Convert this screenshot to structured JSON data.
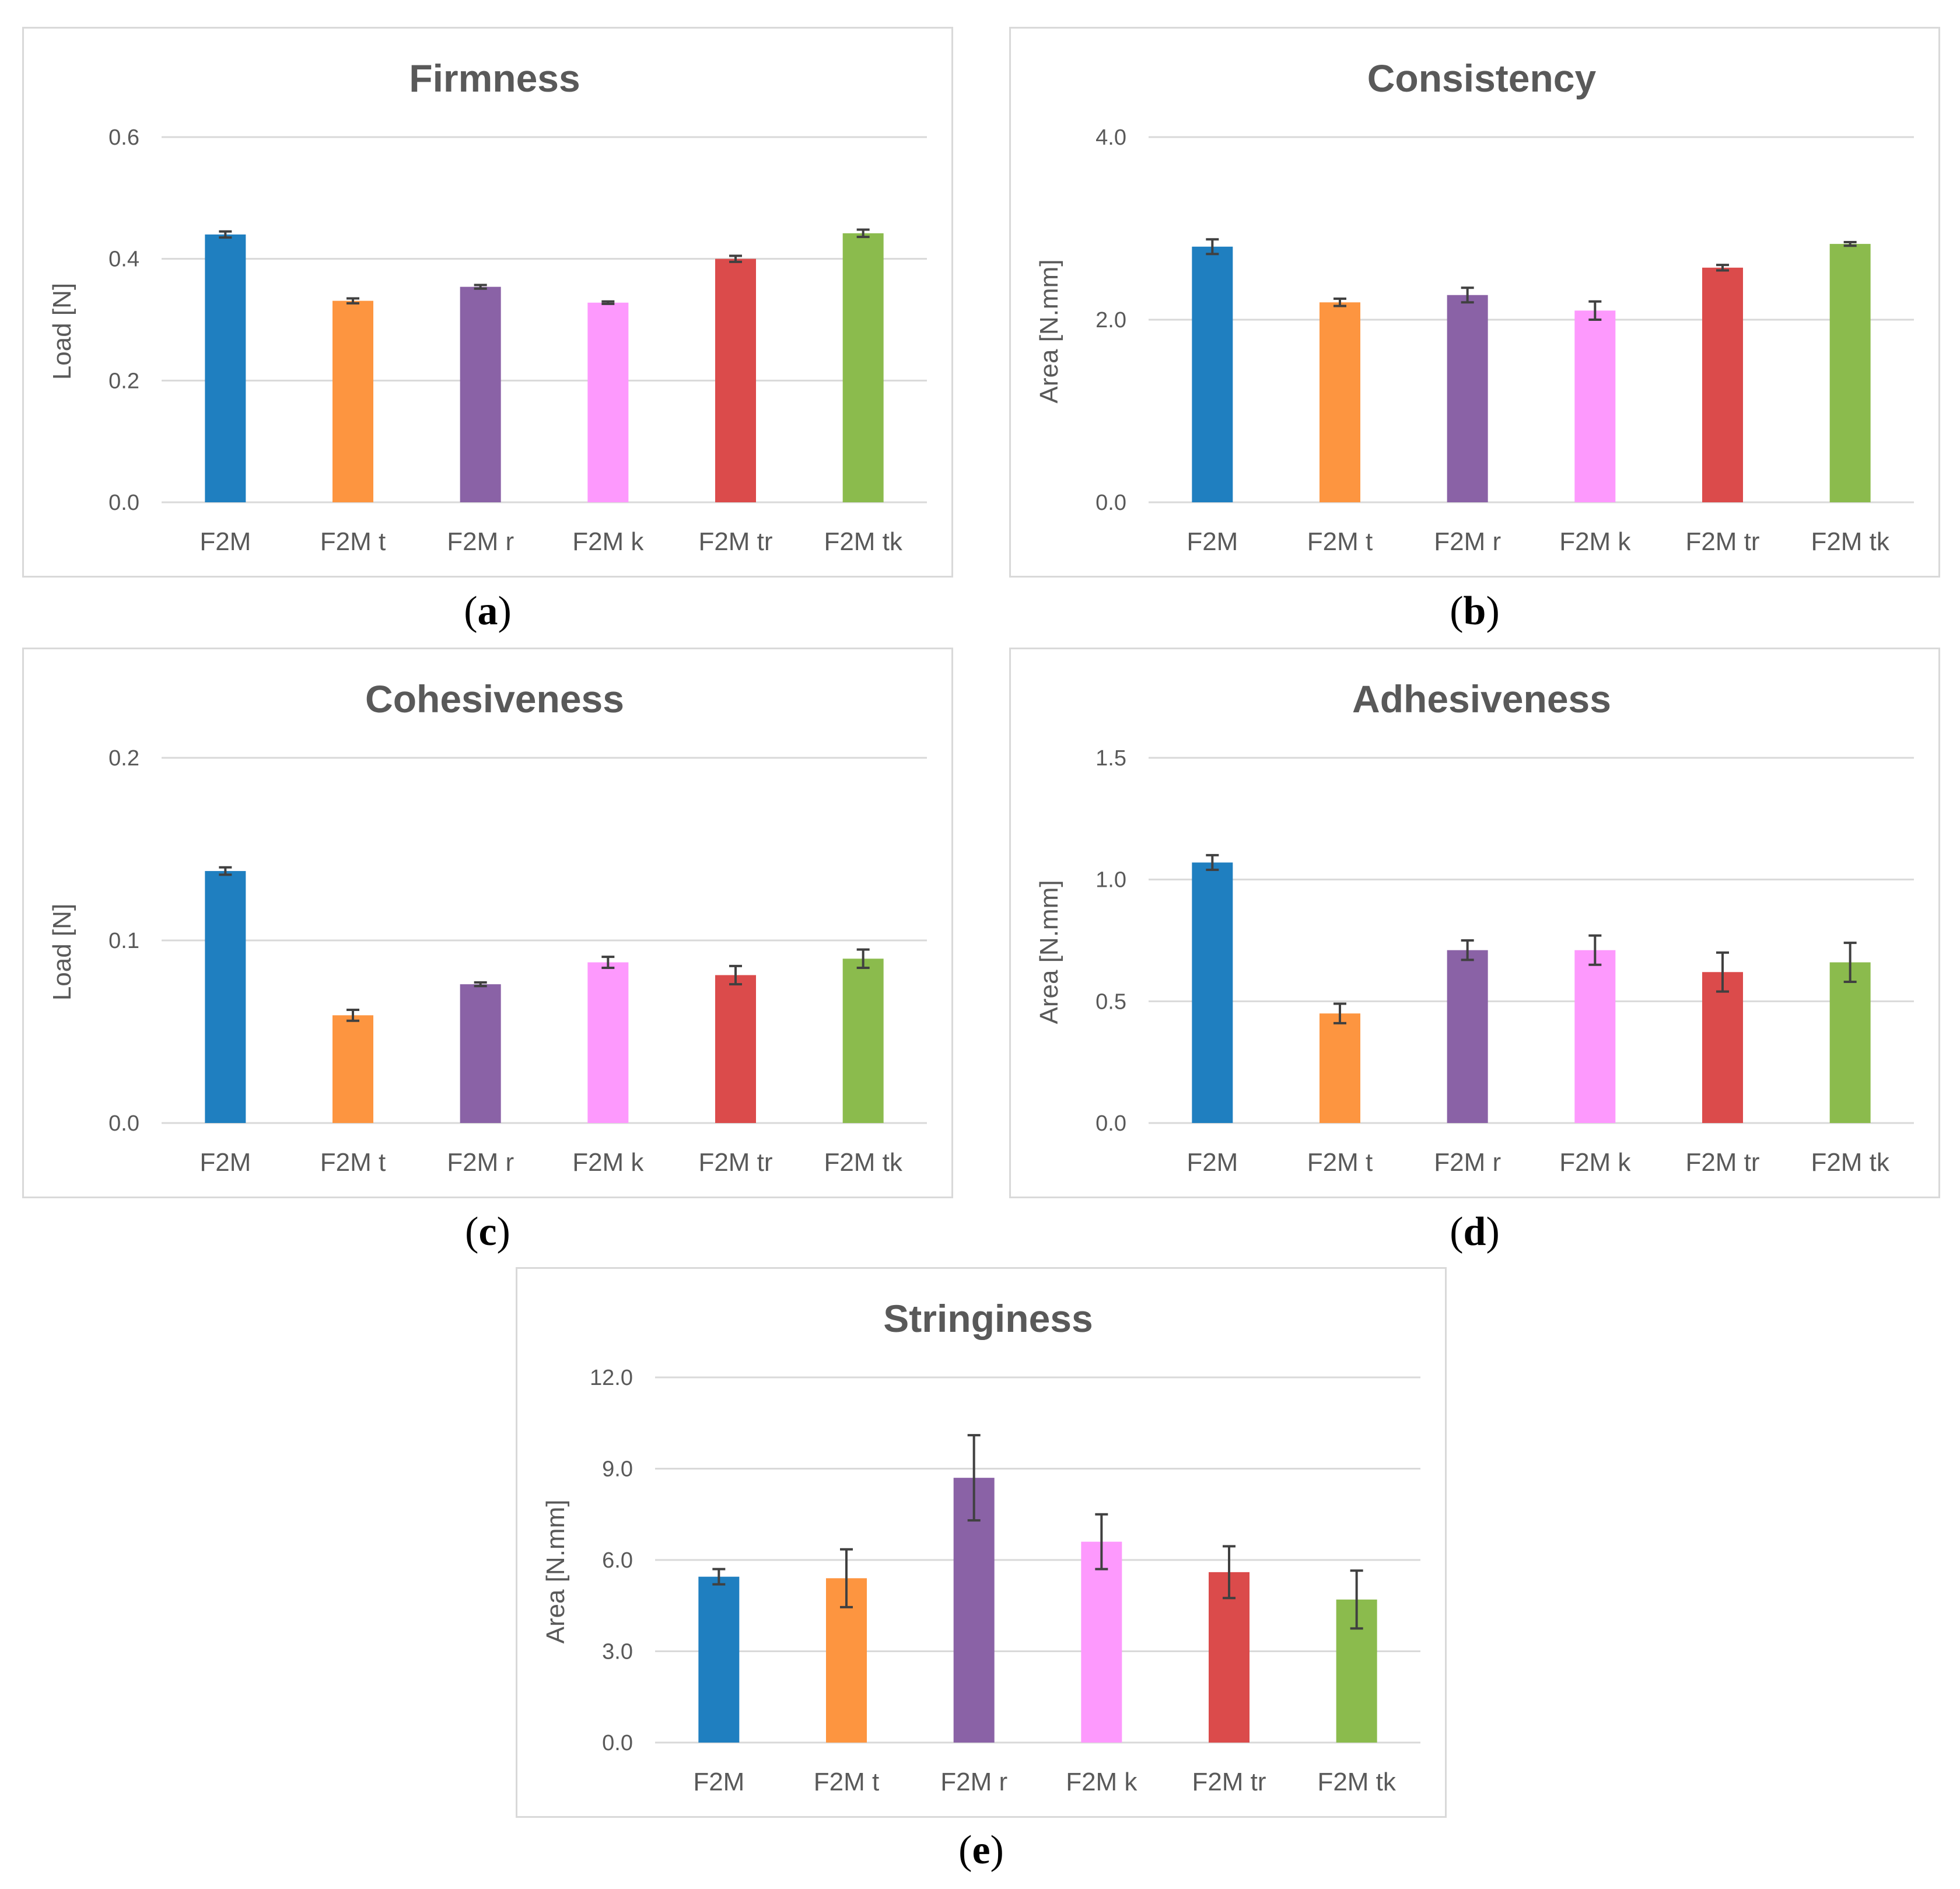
{
  "colors": [
    "#1f7fc0",
    "#fd9540",
    "#8a62a6",
    "#fd99fd",
    "#db4b4b",
    "#8bbb4d"
  ],
  "chart_data": [
    {
      "type": "bar",
      "title": "Firmness",
      "caption": "a",
      "ylabel": "Load [N]",
      "categories": [
        "F2M",
        "F2M t",
        "F2M r",
        "F2M k",
        "F2M tr",
        "F2M tk"
      ],
      "values": [
        0.44,
        0.331,
        0.354,
        0.328,
        0.4,
        0.442
      ],
      "errors": [
        0.005,
        0.004,
        0.003,
        0.002,
        0.005,
        0.006
      ],
      "ylim": [
        0,
        0.6
      ],
      "yticks": [
        "0.0",
        "0.2",
        "0.4",
        "0.6"
      ],
      "grid": true
    },
    {
      "type": "bar",
      "title": "Consistency",
      "caption": "b",
      "ylabel": "Area [N.mm]",
      "categories": [
        "F2M",
        "F2M t",
        "F2M r",
        "F2M k",
        "F2M tr",
        "F2M tk"
      ],
      "values": [
        2.8,
        2.19,
        2.27,
        2.1,
        2.57,
        2.83
      ],
      "errors": [
        0.08,
        0.04,
        0.08,
        0.1,
        0.03,
        0.02
      ],
      "ylim": [
        0,
        4.0
      ],
      "yticks": [
        "0.0",
        "2.0",
        "4.0"
      ],
      "grid": true
    },
    {
      "type": "bar",
      "title": "Cohesiveness",
      "caption": "c",
      "ylabel": "Load [N]",
      "categories": [
        "F2M",
        "F2M t",
        "F2M r",
        "F2M k",
        "F2M tr",
        "F2M tk"
      ],
      "values": [
        0.138,
        0.059,
        0.076,
        0.088,
        0.081,
        0.09
      ],
      "errors": [
        0.002,
        0.003,
        0.001,
        0.003,
        0.005,
        0.005
      ],
      "ylim": [
        0,
        0.2
      ],
      "yticks": [
        "0.0",
        "0.1",
        "0.2"
      ],
      "grid": true
    },
    {
      "type": "bar",
      "title": "Adhesiveness",
      "caption": "d",
      "ylabel": "Area [N.mm]",
      "categories": [
        "F2M",
        "F2M t",
        "F2M r",
        "F2M k",
        "F2M tr",
        "F2M tk"
      ],
      "values": [
        1.07,
        0.45,
        0.71,
        0.71,
        0.62,
        0.66
      ],
      "errors": [
        0.03,
        0.04,
        0.04,
        0.06,
        0.08,
        0.08
      ],
      "ylim": [
        0,
        1.5
      ],
      "yticks": [
        "0.0",
        "0.5",
        "1.0",
        "1.5"
      ],
      "grid": true
    },
    {
      "type": "bar",
      "title": "Stringiness",
      "caption": "e",
      "ylabel": "Area [N.mm]",
      "categories": [
        "F2M",
        "F2M t",
        "F2M r",
        "F2M k",
        "F2M tr",
        "F2M tk"
      ],
      "values": [
        5.45,
        5.4,
        8.7,
        6.6,
        5.6,
        4.7
      ],
      "errors": [
        0.25,
        0.95,
        1.4,
        0.9,
        0.85,
        0.95
      ],
      "ylim": [
        0,
        12.0
      ],
      "yticks": [
        "0.0",
        "3.0",
        "6.0",
        "9.0",
        "12.0"
      ],
      "grid": true
    }
  ]
}
